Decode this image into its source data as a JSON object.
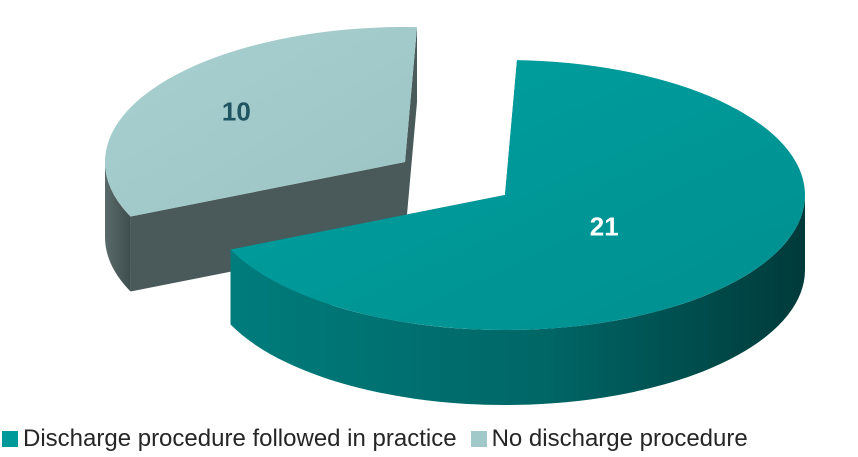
{
  "chart_data": {
    "type": "pie",
    "title": "",
    "slices": [
      {
        "label": "Discharge procedure followed in practice",
        "value": 21,
        "color": "#009999"
      },
      {
        "label": "No discharge procedure",
        "value": 10,
        "color": "#A2C9C9"
      }
    ],
    "data_labels": [
      "21",
      "10"
    ],
    "legend_position": "bottom",
    "style": "3d-exploded"
  }
}
